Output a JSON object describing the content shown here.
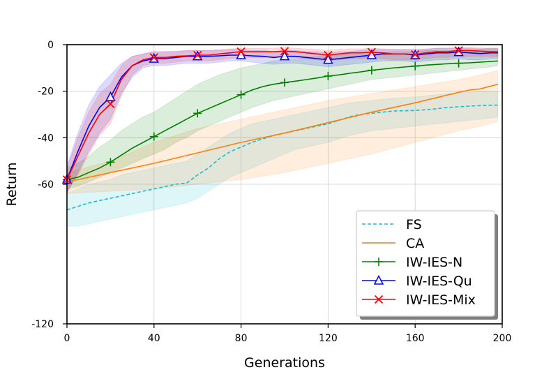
{
  "chart_data": {
    "type": "line",
    "xlabel": "Generations",
    "ylabel": "Return",
    "xlim": [
      0,
      200
    ],
    "ylim": [
      -120,
      0
    ],
    "xticks": [
      0,
      40,
      80,
      120,
      160,
      200
    ],
    "yticks": [
      0,
      -20,
      -40,
      -60,
      -120
    ],
    "grid": true,
    "legend_position": "lower-right",
    "series": [
      {
        "name": "FS",
        "color": "#17becf",
        "style": "dashed",
        "marker": "none",
        "x": [
          0,
          5,
          10,
          15,
          20,
          25,
          30,
          35,
          40,
          45,
          50,
          55,
          60,
          65,
          70,
          75,
          80,
          85,
          90,
          95,
          100,
          105,
          110,
          115,
          120,
          125,
          130,
          135,
          140,
          145,
          150,
          155,
          160,
          165,
          170,
          175,
          180,
          185,
          190,
          195,
          198
        ],
        "mean": [
          -71,
          -69.5,
          -68,
          -67,
          -66,
          -65,
          -64,
          -63,
          -62,
          -61,
          -60,
          -59.5,
          -56,
          -53,
          -49,
          -46,
          -44,
          -42,
          -40.5,
          -39,
          -38,
          -37,
          -36,
          -35,
          -34,
          -32.5,
          -31,
          -30,
          -29.5,
          -29,
          -28.5,
          -28.4,
          -28.3,
          -28,
          -27.5,
          -27,
          -26.7,
          -26.4,
          -26.2,
          -26,
          -26
        ],
        "lower": [
          -78,
          -78,
          -77,
          -76,
          -75,
          -74,
          -73,
          -72,
          -71,
          -70,
          -69,
          -68,
          -66,
          -63,
          -60,
          -57,
          -55,
          -53,
          -51,
          -49,
          -47,
          -45,
          -44,
          -43,
          -42,
          -40.5,
          -39,
          -38,
          -37,
          -36.5,
          -36,
          -35.5,
          -35,
          -34.5,
          -34,
          -33.5,
          -33,
          -32.5,
          -32,
          -31.5,
          -31
        ],
        "upper": [
          -64,
          -62,
          -60,
          -59,
          -58,
          -56,
          -55,
          -54,
          -53,
          -52,
          -51,
          -50,
          -47,
          -44,
          -41,
          -38,
          -36,
          -34,
          -33,
          -32,
          -31,
          -30,
          -29,
          -28,
          -27,
          -26,
          -25,
          -24.5,
          -24,
          -23.5,
          -23,
          -22.8,
          -22.5,
          -22,
          -21.5,
          -21,
          -20.7,
          -20.4,
          -20.2,
          -20,
          -20
        ]
      },
      {
        "name": "CA",
        "color": "#ff7f0e",
        "style": "solid",
        "marker": "none",
        "x": [
          0,
          20,
          40,
          60,
          80,
          100,
          120,
          140,
          160,
          180,
          185,
          190,
          198
        ],
        "mean": [
          -59,
          -55,
          -51,
          -46.5,
          -42,
          -38,
          -33.5,
          -29,
          -25,
          -20.5,
          -19.5,
          -19,
          -17
        ],
        "lower": [
          -64,
          -63,
          -62,
          -60,
          -58,
          -55,
          -51,
          -47,
          -42,
          -37,
          -36,
          -35,
          -33
        ],
        "upper": [
          -55,
          -50,
          -42,
          -36,
          -32,
          -28,
          -24,
          -21,
          -18,
          -15,
          -14,
          -13,
          -11
        ]
      },
      {
        "name": "IW-IES-N",
        "color": "#008000",
        "style": "solid",
        "marker": "plus",
        "marker_x": [
          0,
          20,
          40,
          60,
          80,
          100,
          120,
          140,
          160,
          180
        ],
        "x": [
          0,
          5,
          10,
          15,
          20,
          25,
          30,
          35,
          40,
          45,
          50,
          55,
          60,
          65,
          70,
          75,
          80,
          85,
          90,
          95,
          100,
          105,
          110,
          115,
          120,
          125,
          130,
          135,
          140,
          145,
          150,
          155,
          160,
          165,
          170,
          175,
          180,
          185,
          190,
          195,
          198
        ],
        "mean": [
          -58,
          -57,
          -55,
          -53,
          -50.5,
          -47.5,
          -44.5,
          -42,
          -39.5,
          -37,
          -34.5,
          -32,
          -29.5,
          -27.5,
          -25.5,
          -23.5,
          -21.5,
          -19.5,
          -18,
          -17,
          -16.3,
          -15.7,
          -15,
          -14.3,
          -13.5,
          -13,
          -12.3,
          -11.7,
          -11,
          -10.5,
          -10,
          -9.6,
          -9.2,
          -8.8,
          -8.5,
          -8.2,
          -8,
          -7.8,
          -7.5,
          -7.2,
          -7
        ],
        "lower": [
          -62,
          -61,
          -59,
          -57,
          -55,
          -53,
          -51,
          -49,
          -47,
          -45,
          -42,
          -40,
          -37,
          -35,
          -33,
          -31,
          -29,
          -27,
          -25.5,
          -24,
          -23,
          -22,
          -21,
          -20,
          -19,
          -18,
          -17,
          -16,
          -15,
          -14.5,
          -14,
          -13.5,
          -13,
          -12.5,
          -12,
          -11.5,
          -11,
          -10.5,
          -10,
          -9.5,
          -9
        ],
        "upper": [
          -53,
          -51,
          -48,
          -44,
          -41,
          -37,
          -34,
          -31,
          -29,
          -26,
          -23,
          -20,
          -17,
          -15,
          -13,
          -11.5,
          -10,
          -9,
          -8,
          -7,
          -6.5,
          -6,
          -5.5,
          -5,
          -4.5,
          -4.5,
          -4,
          -4,
          -3.5,
          -3.5,
          -3,
          -3,
          -3,
          -2.5,
          -2.5,
          -2.5,
          -2.5,
          -2.5,
          -2,
          -2,
          -2
        ]
      },
      {
        "name": "IW-IES-Qu",
        "color": "#0000ff",
        "style": "solid",
        "marker": "triangle",
        "marker_x": [
          0,
          20,
          40,
          60,
          80,
          100,
          120,
          140,
          160,
          180
        ],
        "x": [
          0,
          5,
          10,
          15,
          20,
          25,
          30,
          35,
          40,
          45,
          50,
          55,
          60,
          65,
          70,
          75,
          80,
          85,
          90,
          95,
          100,
          105,
          110,
          115,
          120,
          125,
          130,
          135,
          140,
          145,
          150,
          155,
          160,
          165,
          170,
          175,
          180,
          185,
          190,
          195,
          198
        ],
        "mean": [
          -58,
          -46,
          -35,
          -27,
          -22.5,
          -14,
          -9,
          -7,
          -6,
          -6,
          -5.5,
          -5,
          -5,
          -5,
          -4.8,
          -4.5,
          -4.5,
          -4.8,
          -5,
          -5.5,
          -5,
          -5,
          -5.5,
          -6,
          -6.5,
          -6,
          -5.5,
          -5,
          -4.5,
          -4,
          -4,
          -4,
          -4.5,
          -4,
          -3.5,
          -3.5,
          -3.2,
          -3.5,
          -3.8,
          -3.5,
          -3.5
        ],
        "lower": [
          -64,
          -55,
          -46,
          -38,
          -32,
          -21,
          -14,
          -10,
          -9,
          -9,
          -8.5,
          -8,
          -8,
          -8,
          -7.5,
          -7,
          -7,
          -7.5,
          -8,
          -8.5,
          -8,
          -8,
          -8.5,
          -9,
          -9.5,
          -9,
          -8.5,
          -8,
          -7.5,
          -7,
          -7,
          -7,
          -7.5,
          -7,
          -6.5,
          -6.5,
          -6,
          -6.5,
          -6.5,
          -6,
          -6
        ],
        "upper": [
          -52,
          -38,
          -26,
          -18,
          -13,
          -8,
          -5,
          -4,
          -3,
          -3,
          -3,
          -2.5,
          -2.5,
          -2.5,
          -2.5,
          -2,
          -2,
          -2.5,
          -2.5,
          -3,
          -2.5,
          -2.5,
          -3,
          -3,
          -3.5,
          -3,
          -3,
          -2.5,
          -2,
          -2,
          -2,
          -2,
          -2,
          -2,
          -1.5,
          -1.5,
          -1.5,
          -1.5,
          -1.8,
          -1.5,
          -1.5
        ]
      },
      {
        "name": "IW-IES-Mix",
        "color": "#ff0000",
        "style": "solid",
        "marker": "x",
        "marker_x": [
          0,
          20,
          40,
          60,
          80,
          100,
          120,
          140,
          160,
          180
        ],
        "x": [
          0,
          5,
          10,
          15,
          20,
          25,
          30,
          35,
          40,
          45,
          50,
          55,
          60,
          65,
          70,
          75,
          80,
          85,
          90,
          95,
          100,
          105,
          110,
          115,
          120,
          125,
          130,
          135,
          140,
          145,
          150,
          155,
          160,
          165,
          170,
          175,
          180,
          185,
          190,
          195,
          198
        ],
        "mean": [
          -58,
          -48,
          -38,
          -30,
          -25.5,
          -15,
          -9,
          -6.5,
          -5.5,
          -5.5,
          -5,
          -4.8,
          -4.5,
          -4.5,
          -4,
          -3.5,
          -3,
          -3,
          -3,
          -3,
          -2.8,
          -3,
          -3.5,
          -4,
          -4.5,
          -4,
          -3.5,
          -3.5,
          -3.2,
          -3.5,
          -4,
          -4,
          -4.2,
          -3.5,
          -3,
          -3,
          -2.5,
          -2.5,
          -2.8,
          -3,
          -3
        ],
        "lower": [
          -63,
          -56,
          -47,
          -39,
          -34,
          -22,
          -13,
          -9,
          -8,
          -8,
          -7.5,
          -7,
          -7,
          -7,
          -6.5,
          -6,
          -5.5,
          -5.5,
          -5.5,
          -5.5,
          -5,
          -5.5,
          -6,
          -6.5,
          -7,
          -6.5,
          -6,
          -6,
          -5.5,
          -6,
          -6.5,
          -6.5,
          -6.5,
          -6,
          -5.5,
          -5.5,
          -5,
          -5,
          -5,
          -5,
          -5
        ],
        "upper": [
          -53,
          -40,
          -29,
          -21,
          -17,
          -9,
          -5,
          -4,
          -3,
          -3,
          -2.8,
          -2.6,
          -2.5,
          -2.5,
          -2,
          -1.8,
          -1.5,
          -1.5,
          -1.5,
          -1.5,
          -1.3,
          -1.5,
          -1.8,
          -2,
          -2.3,
          -2,
          -1.8,
          -1.8,
          -1.5,
          -1.8,
          -2,
          -2,
          -2.2,
          -1.8,
          -1.5,
          -1.5,
          -1.2,
          -1.2,
          -1.4,
          -1.5,
          -1.5
        ]
      }
    ]
  }
}
